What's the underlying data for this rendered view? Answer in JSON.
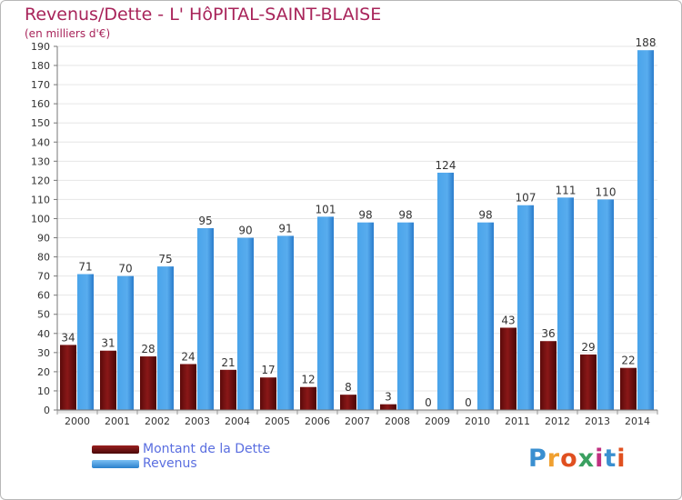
{
  "chart_data": {
    "type": "bar",
    "title": "Revenus/Dette - L' HôPITAL-SAINT-BLAISE",
    "subtitle": "(en milliers d'€)",
    "categories": [
      "2000",
      "2001",
      "2002",
      "2003",
      "2004",
      "2005",
      "2006",
      "2007",
      "2008",
      "2009",
      "2010",
      "2011",
      "2012",
      "2013",
      "2014"
    ],
    "series": [
      {
        "name": "Montant de la Dette",
        "color": "#7a1010",
        "values": [
          34,
          31,
          28,
          24,
          21,
          17,
          12,
          8,
          3,
          0,
          0,
          43,
          36,
          29,
          22
        ]
      },
      {
        "name": "Revenus",
        "color": "#4aa0e6",
        "values": [
          71,
          70,
          75,
          95,
          90,
          91,
          101,
          98,
          98,
          124,
          98,
          107,
          111,
          110,
          188
        ]
      }
    ],
    "ylim": [
      0,
      190
    ],
    "yticks": [
      0,
      10,
      20,
      30,
      40,
      50,
      60,
      70,
      80,
      90,
      100,
      110,
      120,
      130,
      140,
      150,
      160,
      170,
      180,
      190
    ],
    "grid": true,
    "legend_position": "bottom-left"
  },
  "legend": {
    "debt_label": "Montant de la Dette",
    "revenue_label": "Revenus"
  },
  "logo": {
    "p": "P",
    "r": "r",
    "o": "o",
    "x": "x",
    "i": "i",
    "t": "t",
    "i2": "i"
  }
}
